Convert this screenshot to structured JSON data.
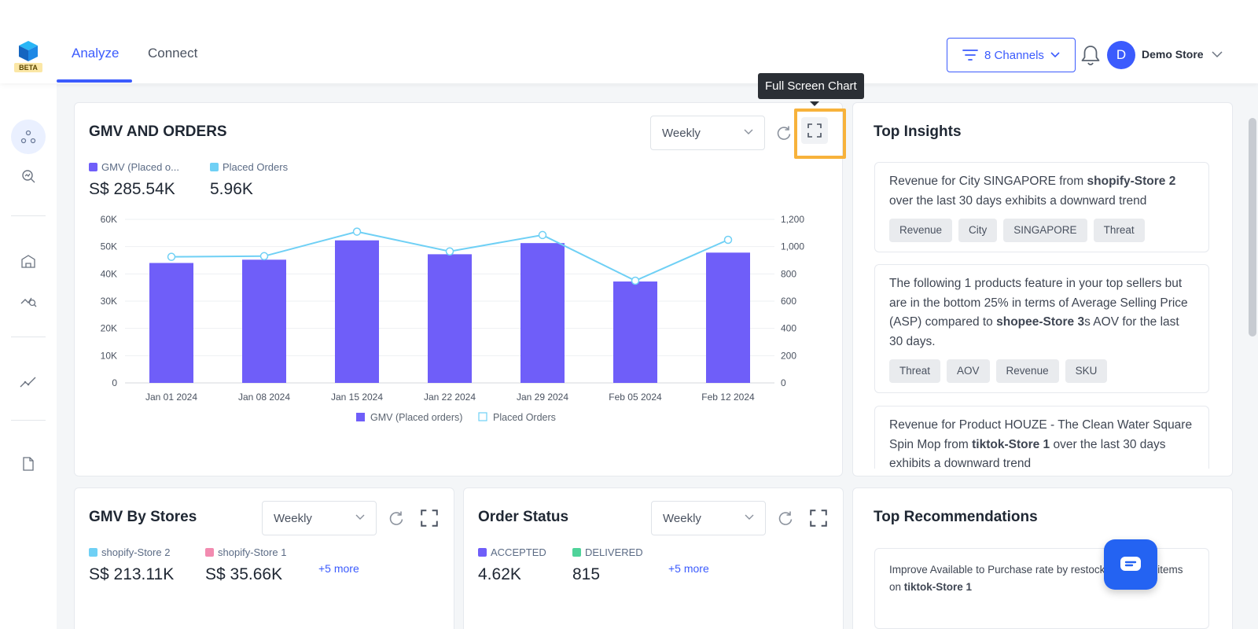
{
  "app": {
    "logo_badge": "BETA",
    "tabs": [
      {
        "label": "Analyze",
        "active": true
      },
      {
        "label": "Connect",
        "active": false
      }
    ],
    "channels_label": "8 Channels",
    "avatar_letter": "D",
    "store_name": "Demo Store"
  },
  "rail_icons": [
    "network-icon",
    "search-analytics-icon",
    "store-building-icon",
    "trend-search-icon",
    "trend-line-icon",
    "document-icon"
  ],
  "gmv_card": {
    "title": "GMV AND ORDERS",
    "period": "Weekly",
    "tooltip": "Full Screen Chart",
    "metrics": [
      {
        "label": "GMV (Placed o...",
        "value": "S$ 285.54K",
        "color": "#6f5ef9"
      },
      {
        "label": "Placed Orders",
        "value": "5.96K",
        "color": "#6fd0f5"
      }
    ]
  },
  "chart_data": {
    "type": "bar",
    "categories": [
      "Jan 01 2024",
      "Jan 08 2024",
      "Jan 15 2024",
      "Jan 22 2024",
      "Jan 29 2024",
      "Feb 05 2024",
      "Feb 12 2024"
    ],
    "series": [
      {
        "name": "GMV (Placed orders)",
        "type": "bar",
        "axis": "left",
        "color": "#6f5ef9",
        "values": [
          44000,
          45200,
          52300,
          47200,
          51300,
          37200,
          47800
        ]
      },
      {
        "name": "Placed Orders",
        "type": "line",
        "axis": "right",
        "color": "#6fd0f5",
        "values": [
          925,
          930,
          1110,
          965,
          1085,
          750,
          1050
        ]
      }
    ],
    "y_left": {
      "ticks": [
        "0",
        "10K",
        "20K",
        "30K",
        "40K",
        "50K",
        "60K"
      ],
      "min": 0,
      "max": 60000
    },
    "y_right": {
      "ticks": [
        "0",
        "200",
        "400",
        "600",
        "800",
        "1,000",
        "1,200"
      ],
      "min": 0,
      "max": 1200
    },
    "legend_position": "bottom",
    "grid": true
  },
  "insights": {
    "title": "Top Insights",
    "items": [
      {
        "parts": [
          "Revenue for City SINGAPORE from ",
          "shopify-Store 2",
          " over the last 30 days exhibits a downward trend"
        ],
        "tags": [
          "Revenue",
          "City",
          "SINGAPORE",
          "Threat"
        ]
      },
      {
        "parts": [
          "The following 1 products feature in your top sellers but are in the bottom 25% in terms of Average Selling Price (ASP) compared to ",
          "shopee-Store 3",
          "s AOV for the last 30 days."
        ],
        "tags": [
          "Threat",
          "AOV",
          "Revenue",
          "SKU"
        ]
      },
      {
        "parts": [
          "Revenue for Product HOUZE - The Clean Water Square Spin Mop from ",
          "tiktok-Store 1",
          " over the last 30 days exhibits a downward trend"
        ],
        "tags": []
      }
    ]
  },
  "gmv_stores": {
    "title": "GMV By Stores",
    "period": "Weekly",
    "metrics": [
      {
        "label": "shopify-Store 2",
        "value": "S$ 213.11K",
        "color": "#6fd0f5"
      },
      {
        "label": "shopify-Store 1",
        "value": "S$ 35.66K",
        "color": "#f28bb0"
      }
    ],
    "more": "+5 more"
  },
  "order_status": {
    "title": "Order Status",
    "period": "Weekly",
    "metrics": [
      {
        "label": "ACCEPTED",
        "value": "4.62K",
        "color": "#6f5ef9"
      },
      {
        "label": "DELIVERED",
        "value": "815",
        "color": "#4fd39a"
      }
    ],
    "more": "+5 more"
  },
  "recommendations": {
    "title": "Top Recommendations",
    "text_parts": [
      "Improve Available to Purchase rate by resto",
      "ck these 218 items on ",
      "tiktok-Store 1"
    ]
  }
}
